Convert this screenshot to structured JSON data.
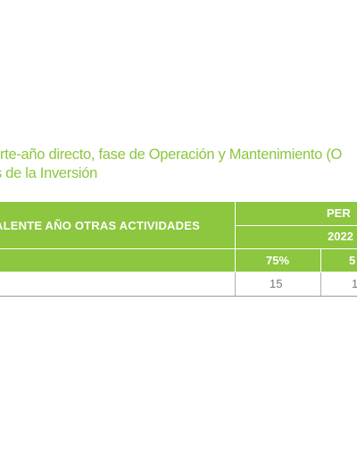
{
  "caption": {
    "line1": "rte-año directo, fase de Operación y Mantenimiento (O",
    "line2": "s de la Inversión"
  },
  "table": {
    "header_label": "ALENTE AÑO OTRAS ACTIVIDADES",
    "period_label": "PER",
    "year_label": "2022",
    "percent_cols": [
      "75%",
      "5"
    ],
    "values": [
      "15",
      "1"
    ]
  },
  "colors": {
    "accent": "#8dc63f",
    "text_on_accent": "#ffffff",
    "value_text": "#777777"
  }
}
